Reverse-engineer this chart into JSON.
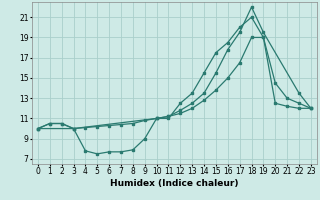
{
  "bg_color": "#ceeae6",
  "grid_color": "#aacfcb",
  "line_color": "#2a7a70",
  "xlabel": "Humidex (Indice chaleur)",
  "xlabel_fontsize": 6.5,
  "tick_fontsize": 5.5,
  "xlim": [
    -0.5,
    23.5
  ],
  "ylim": [
    6.5,
    22.5
  ],
  "yticks": [
    7,
    9,
    11,
    13,
    15,
    17,
    19,
    21
  ],
  "xticks": [
    0,
    1,
    2,
    3,
    4,
    5,
    6,
    7,
    8,
    9,
    10,
    11,
    12,
    13,
    14,
    15,
    16,
    17,
    18,
    19,
    20,
    21,
    22,
    23
  ],
  "line1_x": [
    0,
    1,
    2,
    3,
    4,
    5,
    6,
    7,
    8,
    9,
    10,
    11,
    12,
    13,
    14,
    15,
    16,
    17,
    18,
    19,
    20,
    21,
    22,
    23
  ],
  "line1_y": [
    10.0,
    10.5,
    10.5,
    10.0,
    7.8,
    7.5,
    7.7,
    7.7,
    7.9,
    9.0,
    11.0,
    11.0,
    12.5,
    13.5,
    15.5,
    17.5,
    18.5,
    20.0,
    21.0,
    19.0,
    14.5,
    13.0,
    12.5,
    12.0
  ],
  "line2_x": [
    0,
    1,
    2,
    3,
    4,
    5,
    6,
    7,
    8,
    9,
    10,
    11,
    12,
    13,
    14,
    15,
    16,
    17,
    18,
    19,
    20,
    21,
    22,
    23
  ],
  "line2_y": [
    10.0,
    10.5,
    10.5,
    10.0,
    10.1,
    10.2,
    10.3,
    10.4,
    10.5,
    10.8,
    11.0,
    11.2,
    11.5,
    12.0,
    12.8,
    13.8,
    15.0,
    16.5,
    19.0,
    19.0,
    12.5,
    12.2,
    12.0,
    12.0
  ],
  "line3_x": [
    0,
    3,
    10,
    11,
    12,
    13,
    14,
    15,
    16,
    17,
    18,
    19,
    22,
    23
  ],
  "line3_y": [
    10.0,
    10.0,
    11.0,
    11.2,
    11.8,
    12.5,
    13.5,
    15.5,
    17.8,
    19.5,
    22.0,
    19.5,
    13.5,
    12.0
  ]
}
